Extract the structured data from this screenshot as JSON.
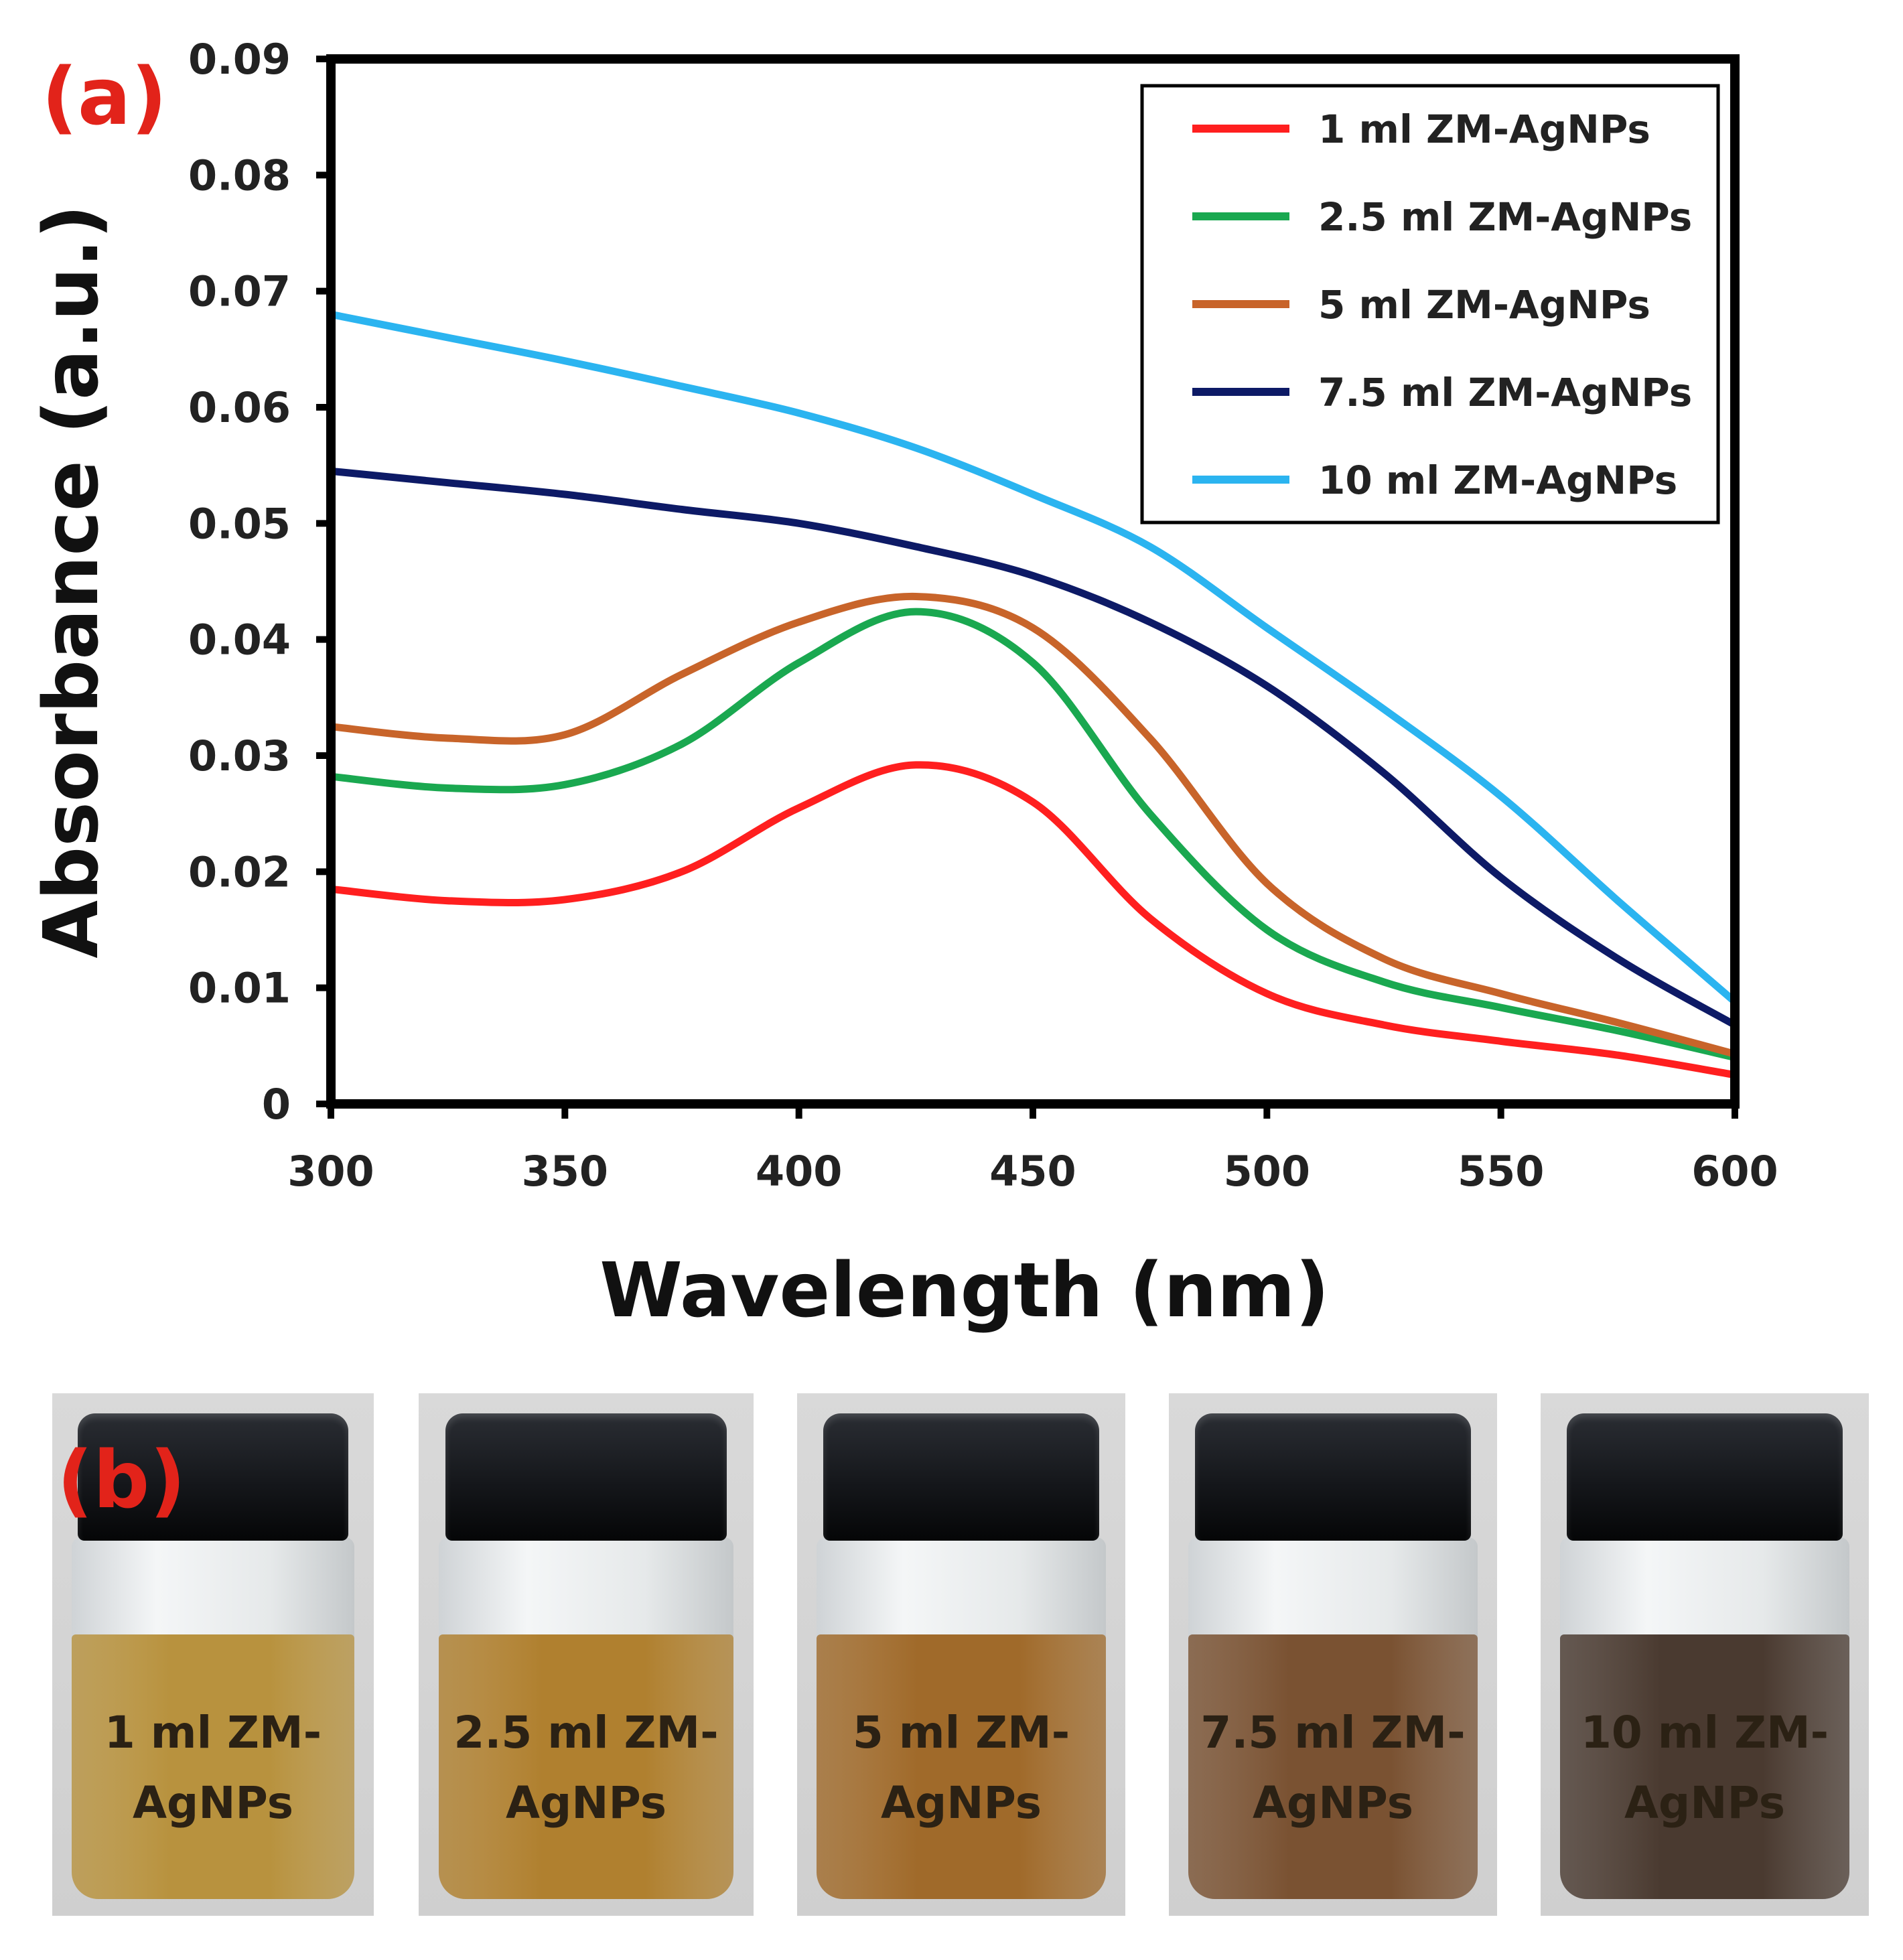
{
  "panel_a_label": "(a)",
  "panel_b_label": "(b)",
  "colors": {
    "red": "#ff1f1f",
    "green": "#1aa850",
    "orange": "#c8642a",
    "navy": "#0d1a66",
    "cyan": "#2bb4f0"
  },
  "chart_data": {
    "type": "line",
    "title": "",
    "xlabel": "Wavelength (nm)",
    "ylabel": "Absorbance (a.u.)",
    "xlim": [
      300,
      600
    ],
    "ylim": [
      0,
      0.09
    ],
    "xticks": [
      "300",
      "350",
      "400",
      "450",
      "500",
      "550",
      "600"
    ],
    "yticks": [
      "0",
      "0.01",
      "0.02",
      "0.03",
      "0.04",
      "0.05",
      "0.06",
      "0.07",
      "0.08",
      "0.09"
    ],
    "legend_position": "top-right",
    "x": [
      300,
      325,
      350,
      375,
      400,
      425,
      450,
      475,
      500,
      525,
      550,
      575,
      600
    ],
    "series": [
      {
        "name": "1 ml ZM-AgNPs",
        "color": "#ff1f1f",
        "values": [
          0.0185,
          0.0175,
          0.0176,
          0.02,
          0.0255,
          0.0292,
          0.026,
          0.016,
          0.0095,
          0.0068,
          0.0054,
          0.0042,
          0.0025
        ]
      },
      {
        "name": "2.5 ml ZM-AgNPs",
        "color": "#1aa850",
        "values": [
          0.0282,
          0.0272,
          0.0275,
          0.031,
          0.038,
          0.0424,
          0.038,
          0.025,
          0.015,
          0.0105,
          0.0083,
          0.0063,
          0.004
        ]
      },
      {
        "name": "5 ml ZM-AgNPs",
        "color": "#c8642a",
        "values": [
          0.0325,
          0.0315,
          0.0318,
          0.037,
          0.0415,
          0.0437,
          0.041,
          0.0315,
          0.019,
          0.0125,
          0.0095,
          0.007,
          0.0043
        ]
      },
      {
        "name": "7.5 ml ZM-AgNPs",
        "color": "#0d1a66",
        "values": [
          0.0545,
          0.0535,
          0.0525,
          0.0512,
          0.05,
          0.048,
          0.0455,
          0.0415,
          0.036,
          0.0285,
          0.0195,
          0.0125,
          0.0068
        ]
      },
      {
        "name": "10 ml ZM-AgNPs",
        "color": "#2bb4f0",
        "values": [
          0.068,
          0.066,
          0.064,
          0.0618,
          0.0595,
          0.0565,
          0.0525,
          0.048,
          0.041,
          0.034,
          0.0265,
          0.0175,
          0.0088
        ]
      }
    ]
  },
  "photos": {
    "vials": [
      {
        "line1": "1 ml ZM-",
        "line2": "AgNPs",
        "liquid": "#b8923e"
      },
      {
        "line1": "2.5 ml ZM-",
        "line2": "AgNPs",
        "liquid": "#b0802f"
      },
      {
        "line1": "5 ml ZM-",
        "line2": "AgNPs",
        "liquid": "#a06a2a"
      },
      {
        "line1": "7.5 ml ZM-",
        "line2": "AgNPs",
        "liquid": "#7a5232"
      },
      {
        "line1": "10 ml ZM-",
        "line2": "AgNPs",
        "liquid": "#4a3a30"
      }
    ]
  }
}
